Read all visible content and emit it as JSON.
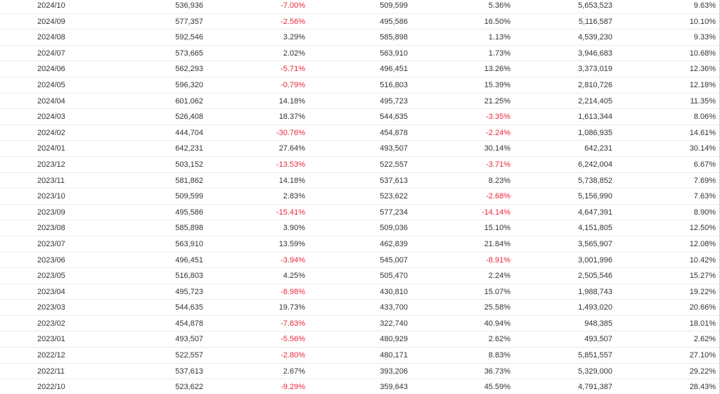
{
  "colors": {
    "negative": "#e8273a",
    "text": "#333333",
    "divider": "#ebebeb"
  },
  "rows": [
    [
      "2024/10",
      "536,936",
      "-7.00%",
      "509,599",
      "5.36%",
      "5,653,523",
      "9.63%"
    ],
    [
      "2024/09",
      "577,357",
      "-2.56%",
      "495,586",
      "16.50%",
      "5,116,587",
      "10.10%"
    ],
    [
      "2024/08",
      "592,546",
      "3.29%",
      "585,898",
      "1.13%",
      "4,539,230",
      "9.33%"
    ],
    [
      "2024/07",
      "573,665",
      "2.02%",
      "563,910",
      "1.73%",
      "3,946,683",
      "10.68%"
    ],
    [
      "2024/06",
      "562,293",
      "-5.71%",
      "496,451",
      "13.26%",
      "3,373,019",
      "12.36%"
    ],
    [
      "2024/05",
      "596,320",
      "-0.79%",
      "516,803",
      "15.39%",
      "2,810,726",
      "12.18%"
    ],
    [
      "2024/04",
      "601,062",
      "14.18%",
      "495,723",
      "21.25%",
      "2,214,405",
      "11.35%"
    ],
    [
      "2024/03",
      "526,408",
      "18.37%",
      "544,635",
      "-3.35%",
      "1,613,344",
      "8.06%"
    ],
    [
      "2024/02",
      "444,704",
      "-30.76%",
      "454,878",
      "-2.24%",
      "1,086,935",
      "14.61%"
    ],
    [
      "2024/01",
      "642,231",
      "27.64%",
      "493,507",
      "30.14%",
      "642,231",
      "30.14%"
    ],
    [
      "2023/12",
      "503,152",
      "-13.53%",
      "522,557",
      "-3.71%",
      "6,242,004",
      "6.67%"
    ],
    [
      "2023/11",
      "581,862",
      "14.18%",
      "537,613",
      "8.23%",
      "5,738,852",
      "7.69%"
    ],
    [
      "2023/10",
      "509,599",
      "2.83%",
      "523,622",
      "-2.68%",
      "5,156,990",
      "7.63%"
    ],
    [
      "2023/09",
      "495,586",
      "-15.41%",
      "577,234",
      "-14.14%",
      "4,647,391",
      "8.90%"
    ],
    [
      "2023/08",
      "585,898",
      "3.90%",
      "509,036",
      "15.10%",
      "4,151,805",
      "12.50%"
    ],
    [
      "2023/07",
      "563,910",
      "13.59%",
      "462,839",
      "21.84%",
      "3,565,907",
      "12.08%"
    ],
    [
      "2023/06",
      "496,451",
      "-3.94%",
      "545,007",
      "-8.91%",
      "3,001,996",
      "10.42%"
    ],
    [
      "2023/05",
      "516,803",
      "4.25%",
      "505,470",
      "2.24%",
      "2,505,546",
      "15.27%"
    ],
    [
      "2023/04",
      "495,723",
      "-8.98%",
      "430,810",
      "15.07%",
      "1,988,743",
      "19.22%"
    ],
    [
      "2023/03",
      "544,635",
      "19.73%",
      "433,700",
      "25.58%",
      "1,493,020",
      "20.66%"
    ],
    [
      "2023/02",
      "454,878",
      "-7.83%",
      "322,740",
      "40.94%",
      "948,385",
      "18.01%"
    ],
    [
      "2023/01",
      "493,507",
      "-5.56%",
      "480,929",
      "2.62%",
      "493,507",
      "2.62%"
    ],
    [
      "2022/12",
      "522,557",
      "-2.80%",
      "480,171",
      "8.83%",
      "5,851,557",
      "27.10%"
    ],
    [
      "2022/11",
      "537,613",
      "2.67%",
      "393,206",
      "36.73%",
      "5,329,000",
      "29.22%"
    ],
    [
      "2022/10",
      "523,622",
      "-9.29%",
      "359,643",
      "45.59%",
      "4,791,387",
      "28.43%"
    ]
  ]
}
